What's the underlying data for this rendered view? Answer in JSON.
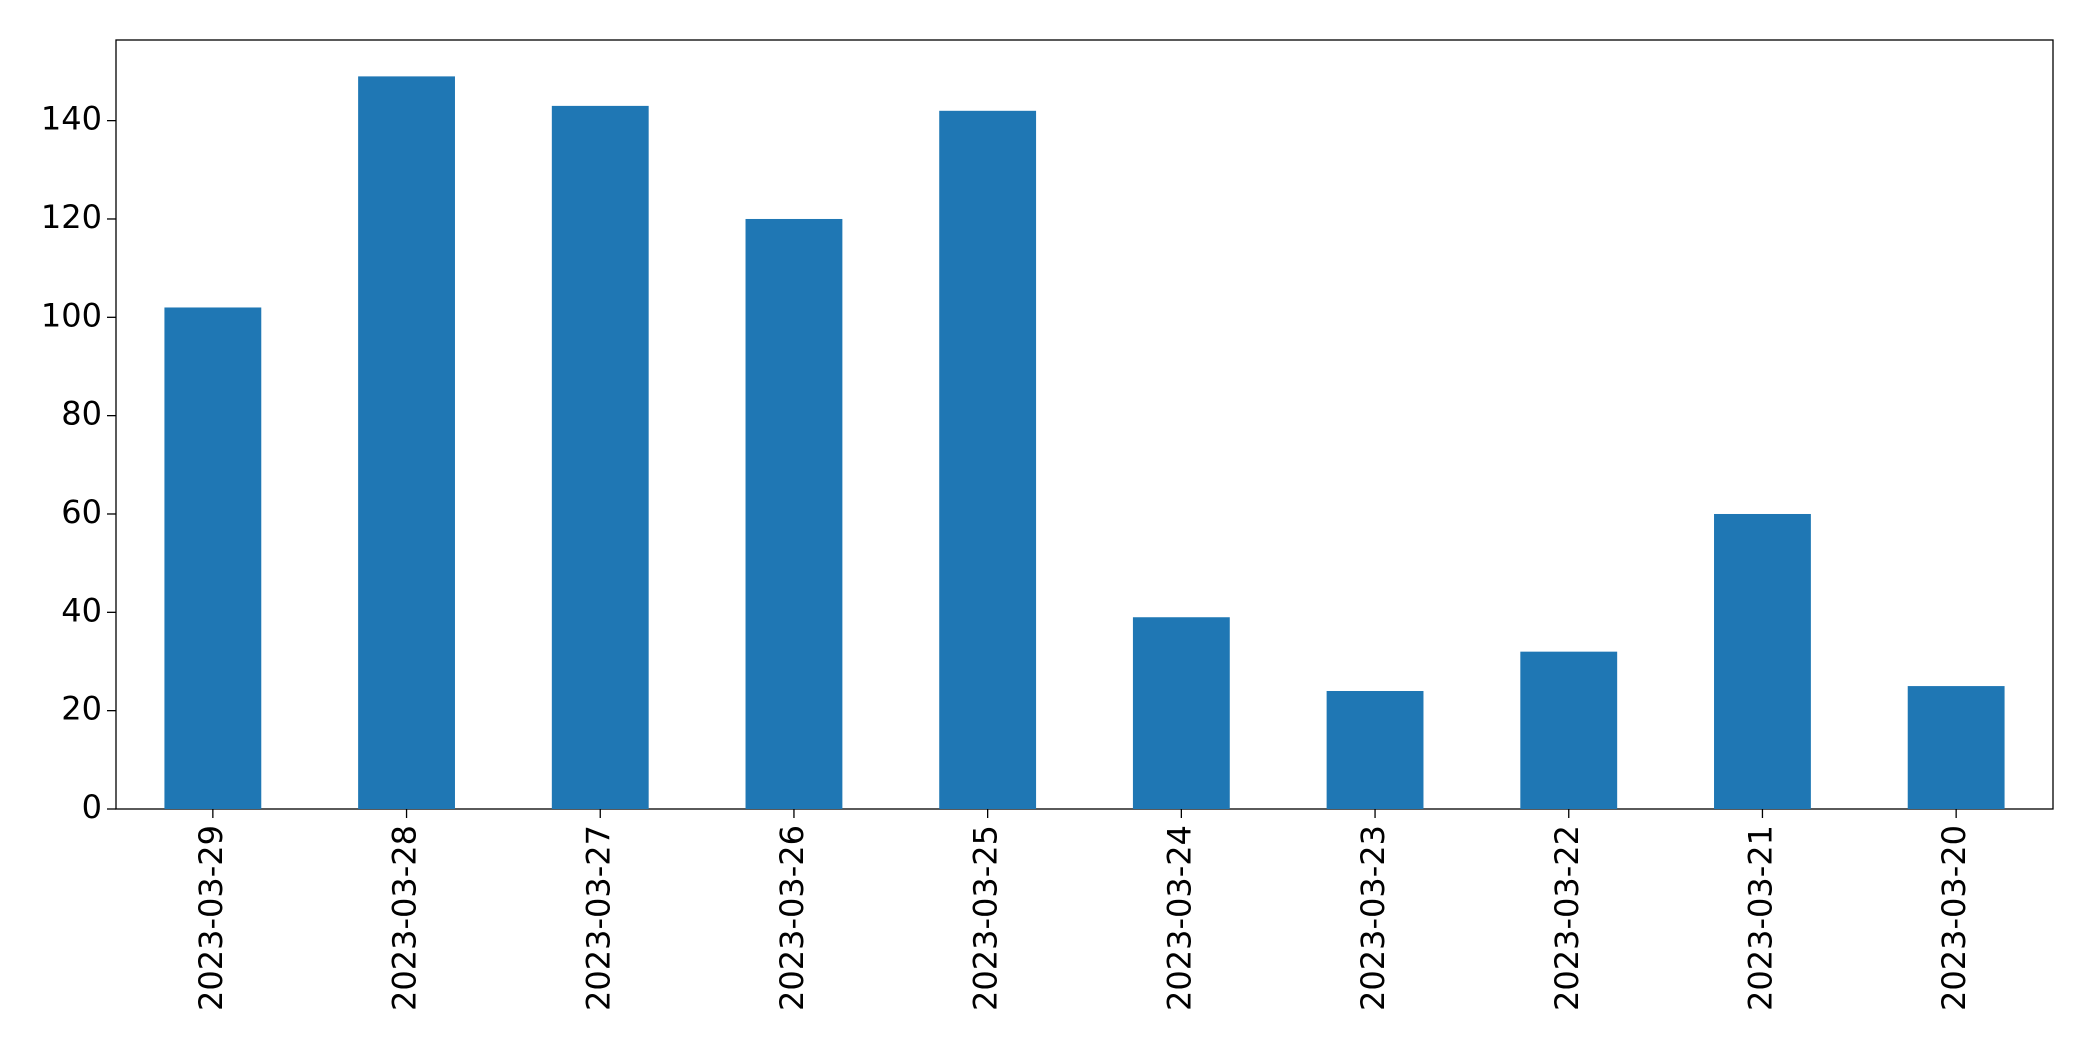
{
  "chart_data": {
    "type": "bar",
    "categories": [
      "2023-03-29",
      "2023-03-28",
      "2023-03-27",
      "2023-03-26",
      "2023-03-25",
      "2023-03-24",
      "2023-03-23",
      "2023-03-22",
      "2023-03-21",
      "2023-03-20"
    ],
    "values": [
      102,
      149,
      143,
      120,
      142,
      39,
      24,
      32,
      60,
      25
    ],
    "color": "#1f77b4",
    "ylim": [
      0,
      156.4
    ],
    "yticks": [
      0,
      20,
      40,
      60,
      80,
      100,
      120,
      140
    ],
    "grid": false
  }
}
